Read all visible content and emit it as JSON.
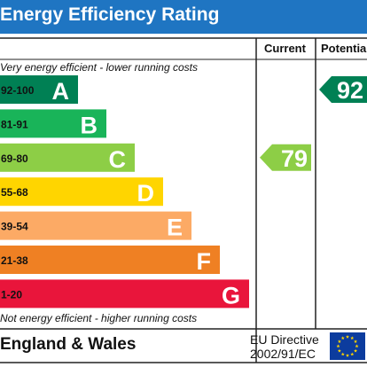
{
  "title": "Energy Efficiency Rating",
  "headers": {
    "current": "Current",
    "potential": "Potential"
  },
  "top_caption": "Very energy efficient - lower running costs",
  "bottom_caption": "Not energy efficient - higher running costs",
  "footer": {
    "region": "England & Wales",
    "directive_line1": "EU Directive",
    "directive_line2": "2002/91/EC"
  },
  "colors": {
    "title_bar": "#1f75c2",
    "flag": "#0c3c9e",
    "stars": "#ffd500"
  },
  "chart_data": {
    "type": "bar",
    "title": "Energy Efficiency Rating",
    "bands": [
      {
        "range": "92-100",
        "letter": "A",
        "color": "#008054"
      },
      {
        "range": "81-91",
        "letter": "B",
        "color": "#19b459"
      },
      {
        "range": "69-80",
        "letter": "C",
        "color": "#8dce46"
      },
      {
        "range": "55-68",
        "letter": "D",
        "color": "#ffd500"
      },
      {
        "range": "39-54",
        "letter": "E",
        "color": "#fcaa65"
      },
      {
        "range": "21-38",
        "letter": "F",
        "color": "#ef8023"
      },
      {
        "range": "1-20",
        "letter": "G",
        "color": "#e9153b"
      }
    ],
    "current": {
      "value": 79,
      "band": "C",
      "color": "#8dce46"
    },
    "potential": {
      "value": 92,
      "band": "A",
      "color": "#008054"
    }
  }
}
